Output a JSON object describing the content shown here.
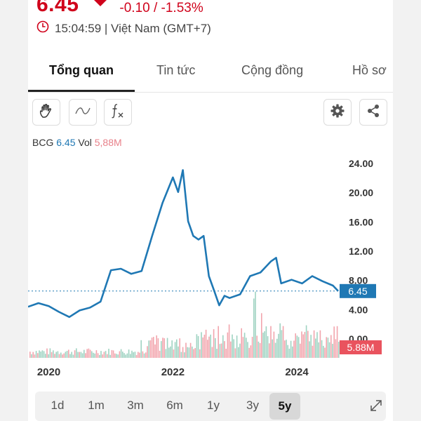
{
  "quote": {
    "price": "6.45",
    "change": "-0.10 / -1.53%",
    "time": "15:04:59 | Việt Nam (GMT+7)",
    "color_down": "#d0021b"
  },
  "tabs": [
    {
      "label": "Tổng quan",
      "active": true
    },
    {
      "label": "Tin tức",
      "active": false
    },
    {
      "label": "Cộng đồng",
      "active": false
    },
    {
      "label": "Hồ sơ",
      "active": false
    }
  ],
  "toolbar": {
    "left_icons": [
      "hand-icon",
      "curve-icon",
      "fx-icon"
    ],
    "right_icons": [
      "gear-icon",
      "share-icon"
    ]
  },
  "legend": {
    "symbol": "BCG",
    "price": "6.45",
    "vol_label": "Vol",
    "vol": "5,88M"
  },
  "chart_data": {
    "type": "line",
    "series": [
      {
        "name": "BCG",
        "color": "#1f78b4",
        "x": [
          "2019-09",
          "2019-11",
          "2020-01",
          "2020-03",
          "2020-05",
          "2020-07",
          "2020-09",
          "2020-11",
          "2021-01",
          "2021-03",
          "2021-05",
          "2021-07",
          "2021-09",
          "2021-11",
          "2022-01",
          "2022-02",
          "2022-03",
          "2022-04",
          "2022-05",
          "2022-06",
          "2022-07",
          "2022-08",
          "2022-09",
          "2022-10",
          "2022-11",
          "2022-12",
          "2023-02",
          "2023-04",
          "2023-06",
          "2023-08",
          "2023-09",
          "2023-10",
          "2023-12",
          "2024-02",
          "2024-04",
          "2024-06",
          "2024-08",
          "2024-09"
        ],
        "y": [
          4.3,
          4.8,
          4.4,
          3.6,
          2.9,
          3.8,
          4.2,
          5.0,
          9.3,
          9.5,
          8.8,
          9.2,
          14.0,
          18.5,
          22.0,
          20.0,
          23.0,
          16.0,
          14.0,
          13.5,
          14.0,
          8.5,
          6.5,
          4.5,
          5.8,
          5.5,
          6.0,
          8.5,
          9.0,
          10.5,
          11.0,
          7.5,
          8.0,
          7.5,
          8.5,
          7.8,
          7.2,
          6.45
        ]
      }
    ],
    "volume": {
      "name": "Vol",
      "last_label": "5.88M"
    },
    "y_ticks": [
      "24.00",
      "20.00",
      "16.00",
      "12.00",
      "8.00",
      "4.00",
      "0.00"
    ],
    "x_ticks": [
      "2020",
      "2022",
      "2024"
    ],
    "ylim": [
      0,
      24
    ],
    "last_price_label": "6.45",
    "grid": false
  },
  "ranges": [
    {
      "label": "1d",
      "active": false
    },
    {
      "label": "1m",
      "active": false
    },
    {
      "label": "3m",
      "active": false
    },
    {
      "label": "6m",
      "active": false
    },
    {
      "label": "1y",
      "active": false
    },
    {
      "label": "3y",
      "active": false
    },
    {
      "label": "5y",
      "active": true
    }
  ]
}
